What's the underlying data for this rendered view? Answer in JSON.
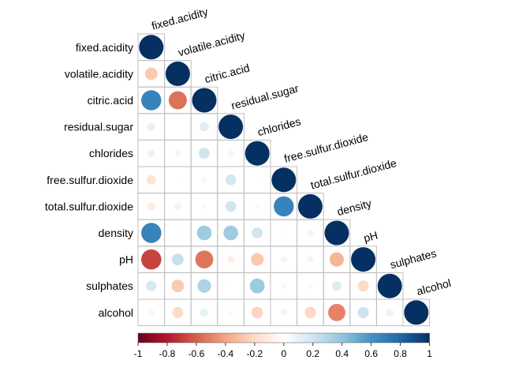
{
  "chart_data": {
    "type": "heatmap",
    "subtype": "correlation-circle-lower",
    "variables": [
      "fixed.acidity",
      "volatile.acidity",
      "citric.acid",
      "residual.sugar",
      "chlorides",
      "free.sulfur.dioxide",
      "total.sulfur.dioxide",
      "density",
      "pH",
      "sulphates",
      "alcohol"
    ],
    "matrix": [
      [
        1.0
      ],
      [
        -0.26,
        1.0
      ],
      [
        0.67,
        -0.55,
        1.0
      ],
      [
        0.11,
        0.0,
        0.14,
        1.0
      ],
      [
        0.09,
        0.06,
        0.2,
        0.06,
        1.0
      ],
      [
        -0.15,
        -0.01,
        -0.06,
        0.19,
        0.01,
        1.0
      ],
      [
        -0.11,
        0.08,
        0.04,
        0.2,
        0.05,
        0.67,
        1.0
      ],
      [
        0.67,
        0.02,
        0.36,
        0.36,
        0.2,
        -0.02,
        0.07,
        1.0
      ],
      [
        -0.68,
        0.23,
        -0.54,
        -0.09,
        -0.27,
        0.07,
        -0.07,
        -0.34,
        1.0
      ],
      [
        0.18,
        -0.26,
        0.31,
        0.01,
        0.37,
        0.05,
        0.04,
        0.15,
        -0.2,
        1.0
      ],
      [
        -0.06,
        -0.2,
        0.11,
        0.04,
        -0.22,
        -0.07,
        -0.21,
        -0.5,
        0.21,
        0.09,
        1.0
      ]
    ],
    "colorbar": {
      "range": [
        -1,
        1
      ],
      "ticks": [
        "-1",
        "-0.8",
        "-0.6",
        "-0.4",
        "-0.2",
        "0",
        "0.2",
        "0.4",
        "0.6",
        "0.8",
        "1"
      ]
    },
    "colors": {
      "stops": [
        "#67001F",
        "#B2182B",
        "#D6604D",
        "#F4A582",
        "#FDDBC7",
        "#FFFFFF",
        "#D1E5F0",
        "#92C5DE",
        "#4393C3",
        "#2166AC",
        "#053061"
      ],
      "grid": "#bfbfbf",
      "text": "#000000"
    }
  }
}
